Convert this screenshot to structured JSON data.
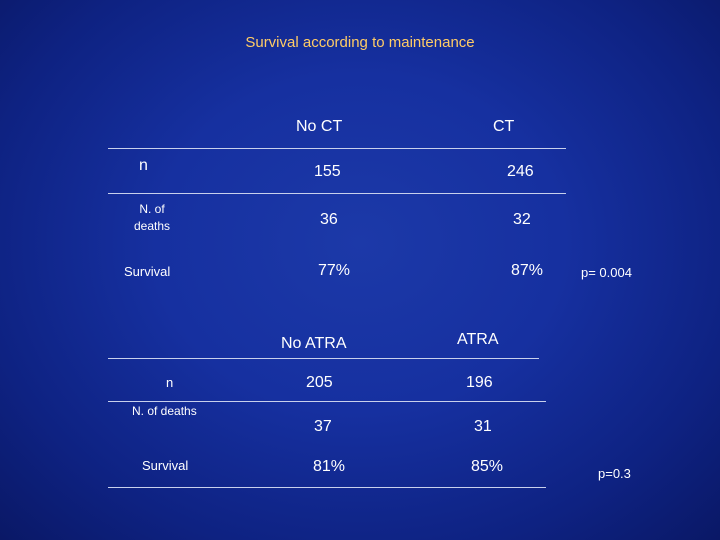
{
  "title": "Survival according to maintenance",
  "table_ct": {
    "col_headers": [
      "No CT",
      "CT"
    ],
    "rows": [
      {
        "label": "n",
        "values": [
          "155",
          "246"
        ]
      },
      {
        "label_line1": "N. of",
        "label_line2": "deaths",
        "values": [
          "36",
          "32"
        ]
      },
      {
        "label": "Survival",
        "values": [
          "77%",
          "87%"
        ]
      }
    ],
    "p_value": "p= 0.004"
  },
  "table_atra": {
    "col_headers": [
      "No ATRA",
      "ATRA"
    ],
    "rows": [
      {
        "label": "n",
        "values": [
          "205",
          "196"
        ]
      },
      {
        "label": "N. of deaths",
        "values": [
          "37",
          "31"
        ]
      },
      {
        "label": "Survival",
        "values": [
          "81%",
          "85%"
        ]
      }
    ],
    "p_value": "p=0.3"
  }
}
